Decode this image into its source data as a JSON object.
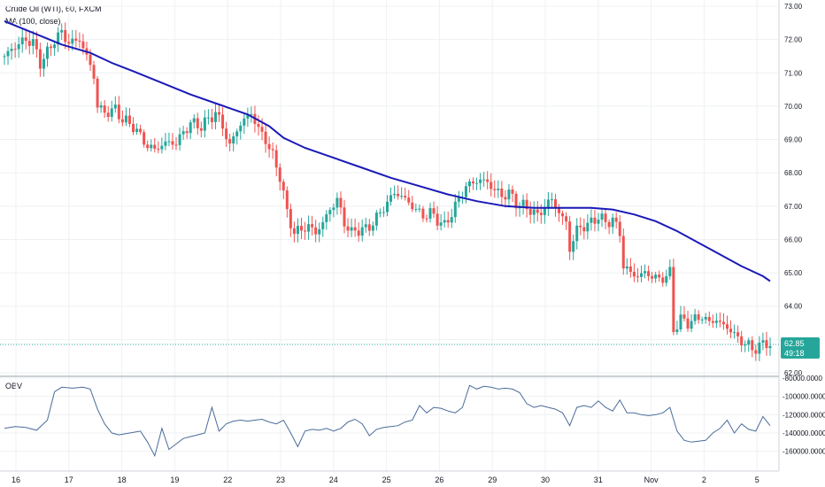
{
  "header": {
    "title": "Crude Oil (WTI), 60, FXCM",
    "indicator": "MA (100, close)"
  },
  "obv_panel": {
    "label": "OBV"
  },
  "price_tag": {
    "price": "62.85",
    "countdown": "49:18"
  },
  "colors": {
    "up": "#26a69a",
    "down": "#ef5350",
    "ma": "#1a1ab8",
    "obv": "#4a6b9a",
    "tag": "#26a69a",
    "grid": "#eef0f3",
    "axis_text": "#131722"
  },
  "chart_data": [
    {
      "type": "candlestick",
      "title": "Crude Oil (WTI), 60, FXCM",
      "ylim": [
        62.0,
        73.0
      ],
      "y_ticks": [
        "73.00",
        "72.00",
        "71.00",
        "70.00",
        "69.00",
        "68.00",
        "67.00",
        "66.00",
        "65.00",
        "64.00",
        "63.00",
        "62.00"
      ],
      "x_ticks": [
        "16",
        "17",
        "18",
        "19",
        "22",
        "23",
        "24",
        "25",
        "26",
        "29",
        "30",
        "31",
        "Nov",
        "2",
        "5"
      ],
      "last_price": 62.85,
      "close_path": [
        [
          0,
          71.5
        ],
        [
          3,
          71.8
        ],
        [
          6,
          72.0
        ],
        [
          8,
          71.9
        ],
        [
          10,
          71.3
        ],
        [
          12,
          71.6
        ],
        [
          14,
          72.0
        ],
        [
          16,
          72.2
        ],
        [
          18,
          71.9
        ],
        [
          21,
          72.0
        ],
        [
          23,
          71.5
        ],
        [
          25,
          70.9
        ],
        [
          26,
          70.0
        ],
        [
          28,
          69.8
        ],
        [
          31,
          69.9
        ],
        [
          33,
          69.6
        ],
        [
          36,
          69.4
        ],
        [
          38,
          69.1
        ],
        [
          40,
          68.8
        ],
        [
          42,
          68.7
        ],
        [
          45,
          68.9
        ],
        [
          48,
          68.9
        ],
        [
          50,
          69.2
        ],
        [
          52,
          69.5
        ],
        [
          55,
          69.4
        ],
        [
          57,
          69.6
        ],
        [
          59,
          69.8
        ],
        [
          61,
          69.4
        ],
        [
          63,
          68.8
        ],
        [
          65,
          69.3
        ],
        [
          67,
          69.6
        ],
        [
          69,
          69.8
        ],
        [
          71,
          69.3
        ],
        [
          73,
          69.0
        ],
        [
          75,
          68.5
        ],
        [
          77,
          67.9
        ],
        [
          79,
          66.8
        ],
        [
          81,
          66.2
        ],
        [
          83,
          66.3
        ],
        [
          85,
          66.4
        ],
        [
          87,
          66.2
        ],
        [
          89,
          66.5
        ],
        [
          91,
          66.9
        ],
        [
          93,
          67.2
        ],
        [
          95,
          66.5
        ],
        [
          97,
          66.2
        ],
        [
          99,
          66.3
        ],
        [
          101,
          66.3
        ],
        [
          103,
          66.5
        ],
        [
          105,
          66.8
        ],
        [
          107,
          67.1
        ],
        [
          109,
          67.4
        ],
        [
          111,
          67.3
        ],
        [
          113,
          67.1
        ],
        [
          115,
          66.9
        ],
        [
          117,
          66.7
        ],
        [
          119,
          66.8
        ],
        [
          121,
          66.6
        ],
        [
          123,
          66.4
        ],
        [
          125,
          66.8
        ],
        [
          127,
          67.2
        ],
        [
          129,
          67.6
        ],
        [
          131,
          67.7
        ],
        [
          133,
          67.8
        ],
        [
          135,
          67.7
        ],
        [
          137,
          67.5
        ],
        [
          139,
          67.3
        ],
        [
          141,
          67.4
        ],
        [
          143,
          67.1
        ],
        [
          145,
          67.0
        ],
        [
          147,
          66.9
        ],
        [
          149,
          66.7
        ],
        [
          151,
          67.0
        ],
        [
          153,
          67.2
        ],
        [
          155,
          66.8
        ],
        [
          157,
          66.5
        ],
        [
          158,
          65.7
        ],
        [
          160,
          66.3
        ],
        [
          162,
          66.4
        ],
        [
          164,
          66.5
        ],
        [
          166,
          66.7
        ],
        [
          168,
          66.5
        ],
        [
          170,
          66.6
        ],
        [
          172,
          66.2
        ],
        [
          173,
          65.2
        ],
        [
          175,
          65.0
        ],
        [
          177,
          64.9
        ],
        [
          179,
          65.0
        ],
        [
          181,
          64.9
        ],
        [
          183,
          64.8
        ],
        [
          185,
          64.9
        ],
        [
          186,
          65.0
        ],
        [
          187,
          63.3
        ],
        [
          189,
          63.6
        ],
        [
          191,
          63.5
        ],
        [
          193,
          63.6
        ],
        [
          195,
          63.7
        ],
        [
          197,
          63.5
        ],
        [
          199,
          63.6
        ],
        [
          201,
          63.4
        ],
        [
          203,
          63.3
        ],
        [
          205,
          63.0
        ],
        [
          207,
          62.9
        ],
        [
          209,
          62.7
        ],
        [
          211,
          62.8
        ],
        [
          213,
          62.9
        ],
        [
          214,
          62.85
        ]
      ]
    },
    {
      "type": "line",
      "name": "MA (100, close)",
      "values": [
        [
          0,
          72.55
        ],
        [
          8,
          72.2
        ],
        [
          16,
          71.85
        ],
        [
          24,
          71.6
        ],
        [
          30,
          71.3
        ],
        [
          36,
          71.05
        ],
        [
          44,
          70.7
        ],
        [
          52,
          70.35
        ],
        [
          60,
          70.05
        ],
        [
          68,
          69.75
        ],
        [
          74,
          69.4
        ],
        [
          78,
          69.05
        ],
        [
          84,
          68.75
        ],
        [
          92,
          68.45
        ],
        [
          100,
          68.15
        ],
        [
          108,
          67.85
        ],
        [
          116,
          67.6
        ],
        [
          124,
          67.35
        ],
        [
          132,
          67.15
        ],
        [
          140,
          67.0
        ],
        [
          148,
          66.95
        ],
        [
          156,
          66.95
        ],
        [
          164,
          66.95
        ],
        [
          170,
          66.9
        ],
        [
          176,
          66.75
        ],
        [
          182,
          66.55
        ],
        [
          188,
          66.25
        ],
        [
          194,
          65.9
        ],
        [
          200,
          65.55
        ],
        [
          206,
          65.2
        ],
        [
          212,
          64.9
        ],
        [
          214,
          64.75
        ]
      ]
    },
    {
      "type": "line",
      "name": "OBV",
      "ylim": [
        -170000,
        -80000
      ],
      "y_ticks": [
        "-80000.0000",
        "-100000.0000",
        "-120000.0000",
        "-140000.0000",
        "-160000.0000"
      ],
      "values": [
        [
          0,
          -135000
        ],
        [
          3,
          -133000
        ],
        [
          6,
          -134000
        ],
        [
          9,
          -137000
        ],
        [
          12,
          -126000
        ],
        [
          14,
          -95000
        ],
        [
          16,
          -90000
        ],
        [
          19,
          -91000
        ],
        [
          22,
          -90000
        ],
        [
          24,
          -92000
        ],
        [
          26,
          -114000
        ],
        [
          28,
          -130000
        ],
        [
          30,
          -140000
        ],
        [
          32,
          -142000
        ],
        [
          35,
          -140000
        ],
        [
          38,
          -138000
        ],
        [
          40,
          -150000
        ],
        [
          42,
          -165000
        ],
        [
          44,
          -135000
        ],
        [
          46,
          -158000
        ],
        [
          48,
          -152000
        ],
        [
          50,
          -146000
        ],
        [
          52,
          -144000
        ],
        [
          54,
          -142000
        ],
        [
          56,
          -140000
        ],
        [
          58,
          -112000
        ],
        [
          60,
          -138000
        ],
        [
          62,
          -130000
        ],
        [
          64,
          -127000
        ],
        [
          66,
          -126000
        ],
        [
          68,
          -127000
        ],
        [
          70,
          -126000
        ],
        [
          72,
          -125000
        ],
        [
          74,
          -128000
        ],
        [
          76,
          -130000
        ],
        [
          78,
          -126000
        ],
        [
          80,
          -140000
        ],
        [
          82,
          -155000
        ],
        [
          84,
          -138000
        ],
        [
          86,
          -136000
        ],
        [
          88,
          -137000
        ],
        [
          90,
          -135000
        ],
        [
          92,
          -138000
        ],
        [
          94,
          -135000
        ],
        [
          96,
          -128000
        ],
        [
          98,
          -125000
        ],
        [
          100,
          -130000
        ],
        [
          102,
          -143000
        ],
        [
          104,
          -136000
        ],
        [
          106,
          -134000
        ],
        [
          108,
          -133000
        ],
        [
          110,
          -132000
        ],
        [
          112,
          -128000
        ],
        [
          114,
          -126000
        ],
        [
          116,
          -110000
        ],
        [
          118,
          -118000
        ],
        [
          120,
          -112000
        ],
        [
          122,
          -113000
        ],
        [
          124,
          -116000
        ],
        [
          126,
          -118000
        ],
        [
          128,
          -112000
        ],
        [
          130,
          -88000
        ],
        [
          132,
          -92000
        ],
        [
          134,
          -89000
        ],
        [
          136,
          -90000
        ],
        [
          138,
          -92000
        ],
        [
          140,
          -91000
        ],
        [
          142,
          -92000
        ],
        [
          144,
          -96000
        ],
        [
          146,
          -108000
        ],
        [
          148,
          -112000
        ],
        [
          150,
          -110000
        ],
        [
          152,
          -112000
        ],
        [
          154,
          -114000
        ],
        [
          156,
          -118000
        ],
        [
          158,
          -132000
        ],
        [
          160,
          -112000
        ],
        [
          162,
          -110000
        ],
        [
          164,
          -112000
        ],
        [
          166,
          -105000
        ],
        [
          168,
          -112000
        ],
        [
          170,
          -116000
        ],
        [
          172,
          -104000
        ],
        [
          174,
          -118000
        ],
        [
          176,
          -118000
        ],
        [
          178,
          -120000
        ],
        [
          180,
          -121000
        ],
        [
          182,
          -120000
        ],
        [
          184,
          -118000
        ],
        [
          186,
          -112000
        ],
        [
          188,
          -138000
        ],
        [
          190,
          -148000
        ],
        [
          192,
          -150000
        ],
        [
          194,
          -149000
        ],
        [
          196,
          -148000
        ],
        [
          198,
          -140000
        ],
        [
          200,
          -135000
        ],
        [
          202,
          -126000
        ],
        [
          204,
          -140000
        ],
        [
          206,
          -130000
        ],
        [
          208,
          -136000
        ],
        [
          210,
          -138000
        ],
        [
          212,
          -122000
        ],
        [
          214,
          -132000
        ]
      ]
    }
  ]
}
